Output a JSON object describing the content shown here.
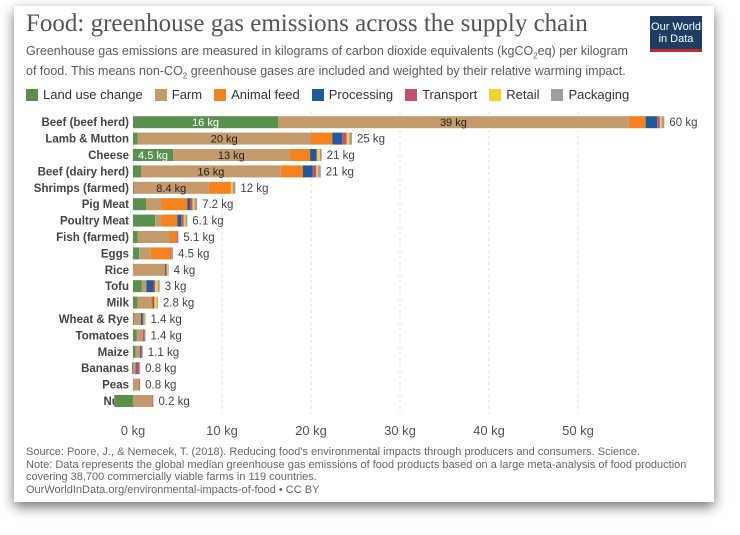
{
  "header": {
    "title": "Food: greenhouse gas emissions across the supply chain",
    "subtitle_a": "Greenhouse gas emissions are measured in kilograms of carbon dioxide equivalents (kgCO",
    "subtitle_sub": "2",
    "subtitle_b": "eq) per kilogram of food. This means non-CO",
    "subtitle_sub2": "2",
    "subtitle_c": " greenhouse gases are included and weighted by their relative warming impact.",
    "logo_line1": "Our World",
    "logo_line2": "in Data"
  },
  "legend": [
    {
      "label": "Land use change",
      "color": "#5a8f4e"
    },
    {
      "label": "Farm",
      "color": "#c49a6c"
    },
    {
      "label": "Animal feed",
      "color": "#f5821f"
    },
    {
      "label": "Processing",
      "color": "#1e5a9c"
    },
    {
      "label": "Transport",
      "color": "#c4506b"
    },
    {
      "label": "Retail",
      "color": "#f2d22e"
    },
    {
      "label": "Packaging",
      "color": "#9e9e9e"
    }
  ],
  "chart_data": {
    "type": "bar",
    "orientation": "horizontal",
    "stacked": true,
    "title": "Food: greenhouse gas emissions across the supply chain",
    "xlabel": "",
    "ylabel": "",
    "xlim": [
      -2,
      60
    ],
    "xticks": [
      0,
      10,
      20,
      30,
      40,
      50
    ],
    "xtick_labels": [
      "0 kg",
      "10 kg",
      "20 kg",
      "30 kg",
      "40 kg",
      "50 kg"
    ],
    "grid": true,
    "series_names": [
      "Land use change",
      "Farm",
      "Animal feed",
      "Processing",
      "Transport",
      "Retail",
      "Packaging"
    ],
    "series_colors": [
      "#5a8f4e",
      "#c49a6c",
      "#f5821f",
      "#1e5a9c",
      "#c4506b",
      "#f2d22e",
      "#9e9e9e"
    ],
    "rows": [
      {
        "name": "Beef (beef herd)",
        "values": [
          16.3,
          39.4,
          1.9,
          1.3,
          0.3,
          0.2,
          0.3
        ],
        "total_label": "60 kg",
        "segment_labels": {
          "0": "16 kg",
          "1": "39 kg"
        }
      },
      {
        "name": "Lamb & Mutton",
        "values": [
          0.5,
          19.5,
          2.4,
          1.1,
          0.5,
          0.3,
          0.3
        ],
        "total_label": "25 kg",
        "segment_labels": {
          "1": "20 kg"
        }
      },
      {
        "name": "Cheese",
        "values": [
          4.5,
          13.1,
          2.3,
          0.7,
          0.1,
          0.3,
          0.2
        ],
        "total_label": "21 kg",
        "segment_labels": {
          "0": "4.5 kg",
          "1": "13 kg"
        }
      },
      {
        "name": "Beef (dairy herd)",
        "values": [
          0.9,
          15.7,
          2.5,
          1.1,
          0.4,
          0.2,
          0.3
        ],
        "total_label": "21 kg",
        "segment_labels": {
          "1": "16 kg"
        }
      },
      {
        "name": "Shrimps (farmed)",
        "values": [
          0.1,
          8.4,
          2.5,
          0.0,
          0.0,
          0.2,
          0.3
        ],
        "total_label": "12 kg",
        "segment_labels": {
          "1": "8.4 kg"
        }
      },
      {
        "name": "Pig Meat",
        "values": [
          1.5,
          1.7,
          2.9,
          0.3,
          0.3,
          0.2,
          0.3
        ],
        "total_label": "7.2 kg",
        "segment_labels": {}
      },
      {
        "name": "Poultry Meat",
        "values": [
          2.5,
          0.7,
          1.8,
          0.4,
          0.3,
          0.2,
          0.2
        ],
        "total_label": "6.1 kg",
        "segment_labels": {}
      },
      {
        "name": "Fish (farmed)",
        "values": [
          0.5,
          3.6,
          0.8,
          0.0,
          0.1,
          0.0,
          0.1
        ],
        "total_label": "5.1 kg",
        "segment_labels": {}
      },
      {
        "name": "Eggs",
        "values": [
          0.7,
          1.3,
          2.2,
          0.0,
          0.1,
          0.0,
          0.2
        ],
        "total_label": "4.5 kg",
        "segment_labels": {}
      },
      {
        "name": "Rice",
        "values": [
          0.0,
          3.6,
          0.0,
          0.1,
          0.1,
          0.1,
          0.1
        ],
        "total_label": "4 kg",
        "segment_labels": {}
      },
      {
        "name": "Tofu",
        "values": [
          1.0,
          0.5,
          0.0,
          0.8,
          0.2,
          0.3,
          0.2
        ],
        "total_label": "3 kg",
        "segment_labels": {}
      },
      {
        "name": "Milk",
        "values": [
          0.5,
          1.5,
          0.2,
          0.1,
          0.1,
          0.3,
          0.1
        ],
        "total_label": "2.8 kg",
        "segment_labels": {}
      },
      {
        "name": "Wheat & Rye",
        "values": [
          0.1,
          0.8,
          0.0,
          0.2,
          0.1,
          0.1,
          0.1
        ],
        "total_label": "1.4 kg",
        "segment_labels": {}
      },
      {
        "name": "Tomatoes",
        "values": [
          0.4,
          0.7,
          0.0,
          0.0,
          0.2,
          0.0,
          0.1
        ],
        "total_label": "1.4 kg",
        "segment_labels": {}
      },
      {
        "name": "Maize",
        "values": [
          0.3,
          0.5,
          0.0,
          0.1,
          0.1,
          0.0,
          0.1
        ],
        "total_label": "1.1 kg",
        "segment_labels": {}
      },
      {
        "name": "Bananas",
        "values": [
          -0.1,
          0.3,
          0.0,
          0.1,
          0.3,
          0.0,
          0.1
        ],
        "total_label": "0.8 kg",
        "segment_labels": {}
      },
      {
        "name": "Peas",
        "values": [
          0.0,
          0.7,
          0.0,
          0.0,
          0.1,
          0.0,
          0.0
        ],
        "total_label": "0.8 kg",
        "segment_labels": {}
      },
      {
        "name": "Nuts",
        "values": [
          -2.1,
          2.1,
          0.0,
          0.0,
          0.1,
          0.0,
          0.1
        ],
        "total_label": "0.2 kg",
        "segment_labels": {}
      }
    ]
  },
  "footer": {
    "source": "Source: Poore, J., & Nemecek, T. (2018). Reducing food's environmental impacts through producers and consumers. Science.",
    "note_line1": "Note: Data represents the global median greenhouse gas emissions of food products based on a large meta-analysis of food production",
    "note_line2": "covering 38,700 commercially viable farms in 119 countries.",
    "url": "OurWorldInData.org/environmental-impacts-of-food • CC BY"
  }
}
